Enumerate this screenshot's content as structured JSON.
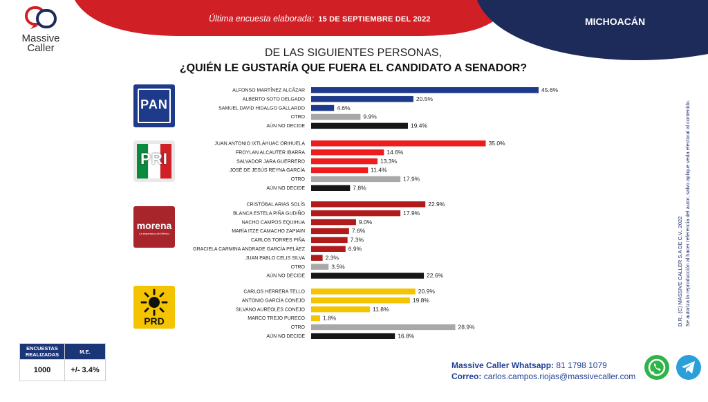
{
  "header": {
    "latest_label": "Última encuesta elaborada:",
    "date": "15 DE SEPTIEMBRE DEL 2022",
    "state": "MICHOACÁN"
  },
  "brand": {
    "line1": "Massive",
    "line2": "Caller"
  },
  "question": {
    "line1": "DE LAS SIGUIENTES PERSONAS,",
    "line2": "¿QUIÉN LE GUSTARÍA QUE FUERA EL CANDIDATO A SENADOR?"
  },
  "party_logos": {
    "pan": "PAN",
    "pri": "PRI",
    "morena": "morena",
    "morena_sub": "La esperanza de México",
    "prd": "PRD"
  },
  "chart_data": {
    "type": "bar",
    "orientation": "horizontal",
    "value_suffix": "%",
    "xlim": [
      0,
      50
    ],
    "groups": [
      {
        "party": "PAN",
        "bars": [
          {
            "label": "ALFONSO MARTÍNEZ ALCÁZAR",
            "value": 45.6,
            "value_label": "45.6%",
            "color": "#1e3a8a"
          },
          {
            "label": "ALBERTO SOTO DELGADO",
            "value": 20.5,
            "value_label": "20.5%",
            "color": "#1e3a8a"
          },
          {
            "label": "SAMUEL DAVID HIDALGO GALLARDO",
            "value": 4.6,
            "value_label": "4.6%",
            "color": "#1e3a8a"
          },
          {
            "label": "OTRO",
            "value": 9.9,
            "value_label": "9.9%",
            "color": "#a8a8a8"
          },
          {
            "label": "AÚN NO DECIDE",
            "value": 19.4,
            "value_label": "19.4%",
            "color": "#161616"
          }
        ]
      },
      {
        "party": "PRI",
        "bars": [
          {
            "label": "JUAN ANTONIO IXTLÁHUAC ORIHUELA",
            "value": 35.0,
            "value_label": "35.0%",
            "color": "#ee1c1c"
          },
          {
            "label": "FROYLAN ALCAUTER IBARRA",
            "value": 14.6,
            "value_label": "14.6%",
            "color": "#ee1c1c"
          },
          {
            "label": "SALVADOR JARA GUERRERO",
            "value": 13.3,
            "value_label": "13.3%",
            "color": "#ee1c1c"
          },
          {
            "label": "JOSÉ DE JESÚS REYNA GARCÍA",
            "value": 11.4,
            "value_label": "11.4%",
            "color": "#ee1c1c"
          },
          {
            "label": "OTRO",
            "value": 17.9,
            "value_label": "17.9%",
            "color": "#a8a8a8"
          },
          {
            "label": "AÚN NO DECIDE",
            "value": 7.8,
            "value_label": "7.8%",
            "color": "#161616"
          }
        ]
      },
      {
        "party": "MORENA",
        "bars": [
          {
            "label": "CRISTÓBAL ARIAS SOLÍS",
            "value": 22.9,
            "value_label": "22.9%",
            "color": "#b01c1c"
          },
          {
            "label": "BLANCA ESTELA PIÑA GUDIÑO",
            "value": 17.9,
            "value_label": "17.9%",
            "color": "#b01c1c"
          },
          {
            "label": "NACHO CAMPOS EQUIHUA",
            "value": 9.0,
            "value_label": "9.0%",
            "color": "#b01c1c"
          },
          {
            "label": "MARÍA ITZE CAMACHO ZAPIAIN",
            "value": 7.6,
            "value_label": "7.6%",
            "color": "#b01c1c"
          },
          {
            "label": "CARLOS TORRES PIÑA",
            "value": 7.3,
            "value_label": "7.3%",
            "color": "#b01c1c"
          },
          {
            "label": "GRACIELA CARMINA ANDRADE GARCÍA PELÁEZ",
            "value": 6.9,
            "value_label": "6.9%",
            "color": "#b01c1c"
          },
          {
            "label": "JUAN PABLO CELIS SILVA",
            "value": 2.3,
            "value_label": "2.3%",
            "color": "#b01c1c"
          },
          {
            "label": "OTRO",
            "value": 3.5,
            "value_label": "3.5%",
            "color": "#a8a8a8"
          },
          {
            "label": "AÚN NO DECIDE",
            "value": 22.6,
            "value_label": "22.6%",
            "color": "#161616"
          }
        ]
      },
      {
        "party": "PRD",
        "bars": [
          {
            "label": "CARLOS HERRERA TELLO",
            "value": 20.9,
            "value_label": "20.9%",
            "color": "#f5c400"
          },
          {
            "label": "ANTONIO GARCÍA CONEJO",
            "value": 19.8,
            "value_label": "19.8%",
            "color": "#f5c400"
          },
          {
            "label": "SILVANO AUREOLES CONEJO",
            "value": 11.8,
            "value_label": "11.8%",
            "color": "#f5c400"
          },
          {
            "label": "MARCO TREJO PURECO",
            "value": 1.8,
            "value_label": "1.8%",
            "color": "#f5c400"
          },
          {
            "label": "OTRO",
            "value": 28.9,
            "value_label": "28.9%",
            "color": "#a8a8a8"
          },
          {
            "label": "AÚN NO DECIDE",
            "value": 16.8,
            "value_label": "16.8%",
            "color": "#161616"
          }
        ]
      }
    ]
  },
  "survey_box": {
    "col1_header": "ENCUESTAS REALIZADAS",
    "col2_header": "M.E.",
    "col1_value": "1000",
    "col2_value": "+/- 3.4%"
  },
  "contact": {
    "whatsapp_label": "Massive Caller Whatsapp:",
    "whatsapp_number": "81 1798 1079",
    "email_label": "Correo:",
    "email": "carlos.campos.riojas@massivecaller.com"
  },
  "side_note": {
    "line1": "D.R., (C) MASSIVE CALLER S.A DE C.V., 2022",
    "line2": "Se autoriza la reproducción al hacer referencia del autor, salvo aplique veda electoral al contenido."
  },
  "colors": {
    "header_red": "#d11f26",
    "header_navy": "#1c2b5a",
    "pan_blue": "#1e3a8a",
    "pri_red": "#ee1c1c",
    "morena_red": "#b01c1c",
    "prd_yellow": "#f5c400",
    "otro_gray": "#a8a8a8",
    "undecided_black": "#161616"
  },
  "icons": {
    "whatsapp": "whatsapp-icon",
    "telegram": "telegram-icon"
  }
}
